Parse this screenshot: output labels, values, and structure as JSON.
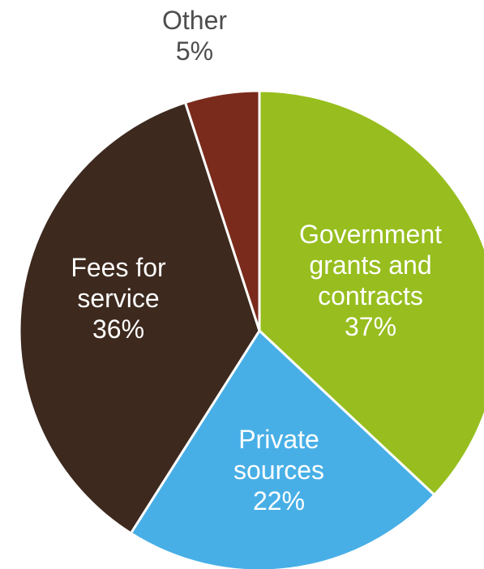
{
  "chart_data": {
    "type": "pie",
    "title": "",
    "slices": [
      {
        "label_lines": [
          "Government",
          "grants and",
          "contracts"
        ],
        "value_label": "37%",
        "value": 37,
        "color": "#97BE1E",
        "label_color": "#ffffff"
      },
      {
        "label_lines": [
          "Private",
          "sources"
        ],
        "value_label": "22%",
        "value": 22,
        "color": "#48AFE6",
        "label_color": "#ffffff"
      },
      {
        "label_lines": [
          "Fees for",
          "service"
        ],
        "value_label": "36%",
        "value": 36,
        "color": "#3D291E",
        "label_color": "#ffffff"
      },
      {
        "label_lines": [
          "Other"
        ],
        "value_label": "5%",
        "value": 5,
        "color": "#7A2B1C",
        "label_color": "#4d4d4d"
      }
    ]
  }
}
